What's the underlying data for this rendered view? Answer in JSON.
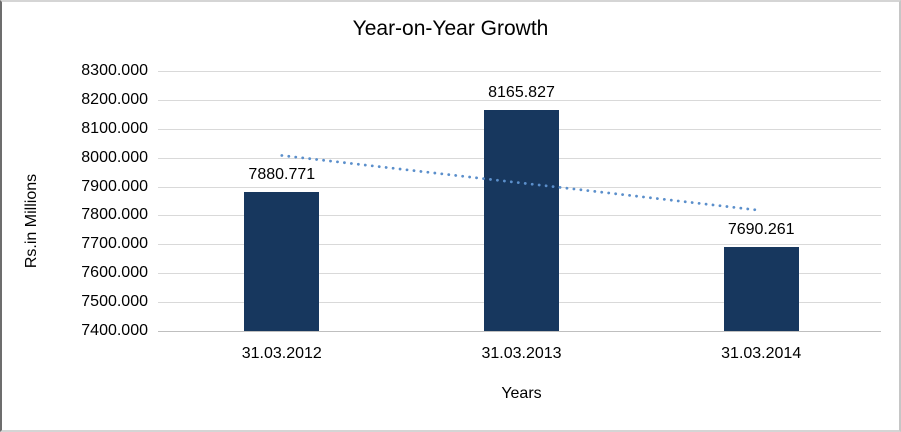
{
  "chart_data": {
    "type": "bar",
    "title": "Year-on-Year Growth",
    "xlabel": "Years",
    "ylabel": "Rs.in Millions",
    "categories": [
      "31.03.2012",
      "31.03.2013",
      "31.03.2014"
    ],
    "values": [
      7880.771,
      8165.827,
      7690.261
    ],
    "value_labels": [
      "7880.771",
      "8165.827",
      "7690.261"
    ],
    "y_ticks": [
      "8300.000",
      "8200.000",
      "8100.000",
      "8000.000",
      "7900.000",
      "7800.000",
      "7700.000",
      "7600.000",
      "7500.000",
      "7400.000"
    ],
    "ylim": [
      7400,
      8300
    ],
    "y_step": 100,
    "grid": true,
    "legend": "none",
    "colors": {
      "bar": "#17375E",
      "trendline": "#5B8FCB",
      "gridline": "#D9D9D9",
      "axis_line": "#BFBFBF",
      "text": "#000000"
    },
    "trendline": {
      "type": "linear",
      "style": "dotted",
      "endpoint_values": [
        8007.54,
        7817.03
      ]
    }
  }
}
